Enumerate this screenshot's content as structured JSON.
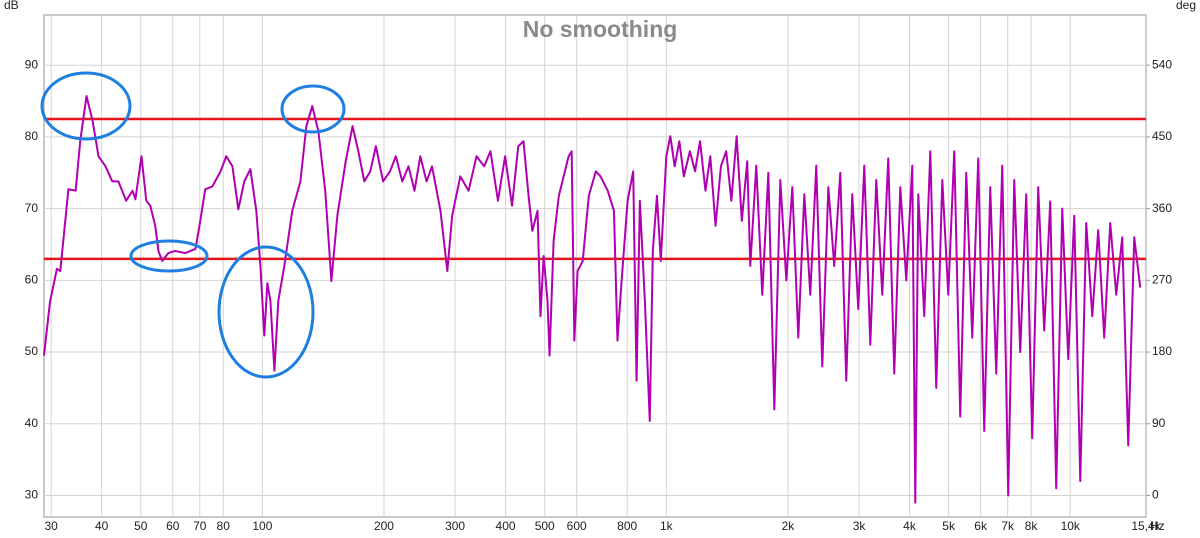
{
  "chart_data": {
    "type": "line",
    "title": "No smoothing",
    "y_label": "dB",
    "y2_label": "deg",
    "x_label": "Hz",
    "log_x": true,
    "grid": true,
    "color": "#b000b0",
    "xlim": [
      28.8,
      15400
    ],
    "ylim": [
      27,
      97
    ],
    "y2lim": [
      -27,
      603
    ],
    "xticks": [
      30,
      40,
      50,
      60,
      70,
      80,
      100,
      200,
      300,
      400,
      500,
      600,
      800,
      {
        "value": 1000,
        "label": "1k"
      },
      {
        "value": 2000,
        "label": "2k"
      },
      {
        "value": 3000,
        "label": "3k"
      },
      {
        "value": 4000,
        "label": "4k"
      },
      {
        "value": 5000,
        "label": "5k"
      },
      {
        "value": 6000,
        "label": "6k"
      },
      {
        "value": 7000,
        "label": "7k"
      },
      {
        "value": 8000,
        "label": "8k"
      },
      {
        "value": 10000,
        "label": "10k"
      },
      {
        "value": 15400,
        "label": "15,4k"
      }
    ],
    "yticks": [
      30,
      40,
      50,
      60,
      70,
      80,
      90
    ],
    "y2ticks": [
      0,
      90,
      180,
      270,
      360,
      450,
      540
    ],
    "reference_lines": [
      {
        "value": 82.5,
        "color": "#e8141c"
      },
      {
        "value": 63,
        "color": "#e8141c"
      }
    ],
    "x": [
      28.8,
      29.8,
      31,
      31.6,
      33.1,
      34.5,
      35.4,
      36.7,
      38,
      39.3,
      40.9,
      42.5,
      44,
      46,
      47.7,
      48.5,
      50.2,
      51.6,
      52.8,
      54.3,
      55.3,
      56.5,
      58.5,
      60.8,
      64.5,
      68.3,
      70.2,
      72.2,
      75.2,
      78.8,
      81.4,
      84.3,
      87.2,
      90.2,
      93.4,
      96.6,
      98.9,
      101.1,
      102.9,
      104.7,
      107.1,
      109.5,
      113.3,
      118.6,
      124.2,
      128.5,
      132.9,
      137.6,
      143.1,
      148.2,
      153.3,
      160.8,
      167.2,
      172.8,
      178.8,
      185,
      191,
      199,
      207,
      214,
      222,
      230,
      238,
      246,
      255,
      263,
      276,
      287,
      295,
      309,
      324,
      339,
      354,
      367,
      383,
      399,
      415,
      430,
      443,
      456,
      466,
      480,
      488,
      497,
      508,
      514,
      526,
      542,
      557,
      573,
      583,
      592,
      603,
      621,
      643,
      669,
      687,
      716,
      742,
      757,
      775,
      802,
      828,
      844,
      860,
      885,
      910,
      926,
      948,
      969,
      1000,
      1023,
      1049,
      1077,
      1105,
      1144,
      1178,
      1212,
      1250,
      1285,
      1324,
      1365,
      1407,
      1449,
      1493,
      1538,
      1586,
      1614,
      1670,
      1728,
      1789,
      1851,
      1915,
      1982,
      2051,
      2122,
      2196,
      2272,
      2351,
      2433,
      2518,
      2605,
      2696,
      2789,
      2886,
      2987,
      3091,
      3199,
      3310,
      3425,
      3544,
      3667,
      3795,
      3927,
      4064,
      4134,
      4205,
      4351,
      4503,
      4659,
      4822,
      4989,
      5163,
      5342,
      5528,
      5720,
      5919,
      6125,
      6338,
      6558,
      6787,
      7022,
      7267,
      7519,
      7781,
      8051,
      8331,
      8621,
      8922,
      9232,
      9554,
      9886,
      10230,
      10588,
      10954,
      11337,
      11729,
      12138,
      12560,
      12997,
      13449,
      13917,
      14401,
      14904
    ],
    "values": [
      49.5,
      57,
      61.6,
      61.3,
      72.7,
      72.5,
      79.4,
      85.7,
      82.2,
      77.3,
      75.9,
      73.8,
      73.8,
      71.1,
      72.5,
      71.3,
      77.3,
      71.1,
      70.4,
      67.6,
      64.1,
      62.7,
      63.8,
      64.1,
      63.8,
      64.4,
      68.3,
      72.7,
      73.1,
      75.2,
      77.3,
      75.9,
      69.9,
      73.8,
      75.5,
      69.7,
      62,
      52.3,
      59.6,
      57.1,
      47.4,
      57.1,
      62,
      69.7,
      73.8,
      81.5,
      84.3,
      80.8,
      72.5,
      59.9,
      69,
      76.6,
      81.5,
      78,
      73.8,
      75.2,
      78.7,
      73.8,
      75.2,
      77.3,
      73.8,
      75.9,
      72.5,
      77.3,
      73.8,
      75.9,
      69.7,
      61.3,
      69,
      74.5,
      72.5,
      77.3,
      75.9,
      78,
      71.1,
      77.3,
      70.4,
      78.7,
      79.4,
      71.8,
      66.9,
      69.7,
      55,
      63.4,
      57.1,
      49.5,
      65.5,
      71.8,
      74.5,
      77.3,
      78,
      51.6,
      61.3,
      62.7,
      71.8,
      75.2,
      74.5,
      72.5,
      69.7,
      51.6,
      59.9,
      71.1,
      75.2,
      46,
      71.1,
      57.1,
      40.4,
      64.1,
      71.8,
      62.7,
      77.3,
      80.1,
      75.9,
      79.4,
      74.5,
      78,
      75.2,
      79.4,
      72.5,
      77.3,
      67.6,
      75.9,
      78,
      71.1,
      80.1,
      68.3,
      76.6,
      62,
      76,
      58,
      75,
      42,
      74,
      60,
      73,
      52,
      72,
      58,
      76,
      48,
      73,
      62,
      75,
      46,
      72,
      56,
      76,
      51,
      74,
      58,
      77,
      47,
      73,
      60,
      76,
      29,
      72,
      55,
      78,
      45,
      74,
      58,
      78,
      41,
      75,
      52,
      77,
      39,
      73,
      47,
      76,
      30,
      74,
      50,
      72,
      38,
      73,
      53,
      71,
      31,
      70,
      49,
      69,
      32,
      68,
      55,
      67,
      52,
      68,
      58,
      66,
      37,
      66,
      59
    ]
  }
}
